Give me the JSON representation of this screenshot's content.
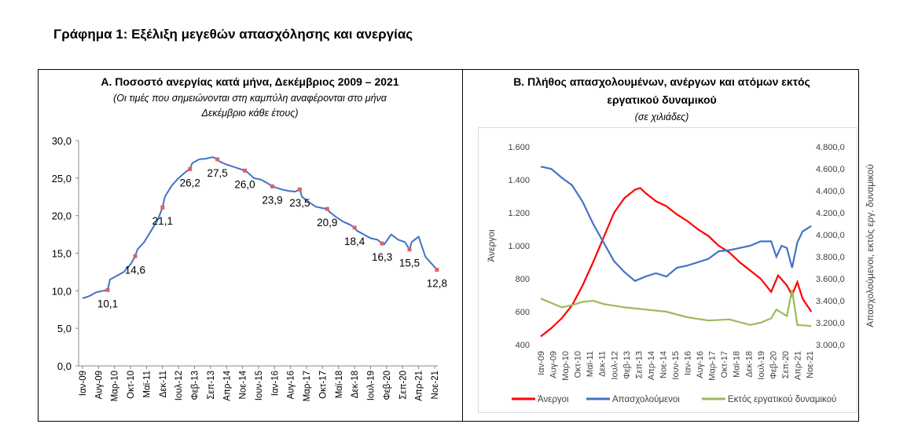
{
  "title": "Γράφημα 1: Εξέλιξη μεγεθών απασχόλησης και ανεργίας",
  "chart_data": [
    {
      "type": "line",
      "title": "Α. Ποσοστό ανεργίας κατά μήνα, Δεκέμβριος 2009 – 2021",
      "subtitle_lines": [
        "(Οι τιμές που σημειώνονται στη καμπύλη αναφέρονται στο μήνα",
        "Δεκέμβριο κάθε έτους)"
      ],
      "ylim": [
        0,
        30
      ],
      "yticks": [
        "0,0",
        "5,0",
        "10,0",
        "15,0",
        "20,0",
        "25,0",
        "30,0"
      ],
      "xticks": [
        "Ιαν-09",
        "Αυγ-09",
        "Μαρ-10",
        "Οκτ-10",
        "Μαϊ-11",
        "Δεκ-11",
        "Ιουλ-12",
        "Φεβ-13",
        "Σεπ-13",
        "Απρ-14",
        "Νοε-14",
        "Ιουν-15",
        "Ιαν-16",
        "Αυγ-16",
        "Μαρ-17",
        "Οκτ-17",
        "Μαϊ-18",
        "Δεκ-18",
        "Ιουλ-19",
        "Φεβ-20",
        "Σεπ-20",
        "Απρ-21",
        "Νοε-21"
      ],
      "series": [
        {
          "color": "#4472c4",
          "points": [
            [
              "2009-01",
              9.0
            ],
            [
              "2009-04",
              9.3
            ],
            [
              "2009-07",
              9.8
            ],
            [
              "2009-10",
              10.0
            ],
            [
              "2009-12",
              10.1
            ],
            [
              "2010-01",
              11.5
            ],
            [
              "2010-04",
              12.0
            ],
            [
              "2010-07",
              12.5
            ],
            [
              "2010-10",
              13.5
            ],
            [
              "2010-12",
              14.6
            ],
            [
              "2011-01",
              15.5
            ],
            [
              "2011-04",
              16.5
            ],
            [
              "2011-07",
              18.0
            ],
            [
              "2011-10",
              19.5
            ],
            [
              "2011-12",
              21.1
            ],
            [
              "2012-01",
              22.5
            ],
            [
              "2012-04",
              24.0
            ],
            [
              "2012-07",
              25.0
            ],
            [
              "2012-10",
              25.8
            ],
            [
              "2012-12",
              26.2
            ],
            [
              "2013-01",
              27.0
            ],
            [
              "2013-04",
              27.5
            ],
            [
              "2013-07",
              27.6
            ],
            [
              "2013-10",
              27.8
            ],
            [
              "2013-12",
              27.5
            ],
            [
              "2014-01",
              27.2
            ],
            [
              "2014-04",
              26.8
            ],
            [
              "2014-07",
              26.5
            ],
            [
              "2014-10",
              26.2
            ],
            [
              "2014-12",
              26.0
            ],
            [
              "2015-01",
              25.8
            ],
            [
              "2015-04",
              25.0
            ],
            [
              "2015-07",
              24.8
            ],
            [
              "2015-10",
              24.3
            ],
            [
              "2015-12",
              23.9
            ],
            [
              "2016-01",
              23.8
            ],
            [
              "2016-04",
              23.5
            ],
            [
              "2016-07",
              23.3
            ],
            [
              "2016-10",
              23.2
            ],
            [
              "2016-12",
              23.5
            ],
            [
              "2017-01",
              22.5
            ],
            [
              "2017-04",
              21.8
            ],
            [
              "2017-07",
              21.2
            ],
            [
              "2017-10",
              21.0
            ],
            [
              "2017-12",
              20.9
            ],
            [
              "2018-01",
              20.5
            ],
            [
              "2018-04",
              19.8
            ],
            [
              "2018-07",
              19.2
            ],
            [
              "2018-10",
              18.8
            ],
            [
              "2018-12",
              18.4
            ],
            [
              "2019-01",
              18.0
            ],
            [
              "2019-04",
              17.5
            ],
            [
              "2019-07",
              17.0
            ],
            [
              "2019-10",
              16.8
            ],
            [
              "2019-12",
              16.3
            ],
            [
              "2020-01",
              16.2
            ],
            [
              "2020-04",
              17.5
            ],
            [
              "2020-07",
              16.8
            ],
            [
              "2020-10",
              16.5
            ],
            [
              "2020-12",
              15.5
            ],
            [
              "2021-01",
              16.5
            ],
            [
              "2021-04",
              17.2
            ],
            [
              "2021-07",
              14.5
            ],
            [
              "2021-10",
              13.5
            ],
            [
              "2021-12",
              12.8
            ]
          ]
        }
      ],
      "labels": [
        [
          "2009-12",
          "10,1"
        ],
        [
          "2010-12",
          "14,6"
        ],
        [
          "2011-12",
          "21,1"
        ],
        [
          "2012-12",
          "26,2"
        ],
        [
          "2013-12",
          "27,5"
        ],
        [
          "2014-12",
          "26,0"
        ],
        [
          "2015-12",
          "23,9"
        ],
        [
          "2016-12",
          "23,5"
        ],
        [
          "2017-12",
          "20,9"
        ],
        [
          "2018-12",
          "18,4"
        ],
        [
          "2019-12",
          "16,3"
        ],
        [
          "2020-12",
          "15,5"
        ],
        [
          "2021-12",
          "12,8"
        ]
      ],
      "marker_color": "#e06060"
    },
    {
      "type": "line",
      "title_lines": [
        "Β. Πλήθος απασχολουμένων, ανέργων και ατόμων εκτός",
        "εργατικού δυναμικού"
      ],
      "subtitle": "(σε χιλιάδες)",
      "ylabel": "Άνεργοι",
      "y2label": "Απασχολούμενοι, εκτός εργ. δυναμικού",
      "ylim": [
        400,
        1600
      ],
      "y2lim": [
        3000,
        4800
      ],
      "yticks": [
        "400",
        "600",
        "800",
        "1.000",
        "1.200",
        "1.400",
        "1.600"
      ],
      "y2ticks": [
        "3.000,0",
        "3.200,0",
        "3.400,0",
        "3.600,0",
        "3.800,0",
        "4.000,0",
        "4.200,0",
        "4.400,0",
        "4.600,0",
        "4.800,0"
      ],
      "xticks": [
        "Ιαν-09",
        "Αυγ-09",
        "Μαρ-10",
        "Οκτ-10",
        "Μαϊ-11",
        "Δεκ-11",
        "Ιουλ-12",
        "Φεβ-13",
        "Σεπ-13",
        "Απρ-14",
        "Νοε-14",
        "Ιουν-15",
        "Ιαν-16",
        "Αυγ-16",
        "Μαρ-17",
        "Οκτ-17",
        "Μαϊ-18",
        "Δεκ-18",
        "Ιουλ-19",
        "Φεβ-20",
        "Σεπ-20",
        "Απρ-21",
        "Νοε-21"
      ],
      "legend_position": "bottom",
      "series": [
        {
          "name": "Άνεργοι",
          "color": "#ff0000",
          "axis": "left",
          "points": [
            [
              "2009-01",
              450
            ],
            [
              "2009-07",
              500
            ],
            [
              "2010-01",
              560
            ],
            [
              "2010-07",
              640
            ],
            [
              "2011-01",
              760
            ],
            [
              "2011-07",
              900
            ],
            [
              "2012-01",
              1050
            ],
            [
              "2012-07",
              1200
            ],
            [
              "2013-01",
              1290
            ],
            [
              "2013-07",
              1340
            ],
            [
              "2013-10",
              1350
            ],
            [
              "2014-01",
              1320
            ],
            [
              "2014-07",
              1270
            ],
            [
              "2015-01",
              1240
            ],
            [
              "2015-07",
              1190
            ],
            [
              "2016-01",
              1150
            ],
            [
              "2016-07",
              1100
            ],
            [
              "2017-01",
              1060
            ],
            [
              "2017-07",
              1000
            ],
            [
              "2018-01",
              960
            ],
            [
              "2018-07",
              900
            ],
            [
              "2019-01",
              850
            ],
            [
              "2019-07",
              800
            ],
            [
              "2020-01",
              720
            ],
            [
              "2020-05",
              820
            ],
            [
              "2020-10",
              760
            ],
            [
              "2021-01",
              700
            ],
            [
              "2021-04",
              780
            ],
            [
              "2021-07",
              680
            ],
            [
              "2021-12",
              600
            ]
          ]
        },
        {
          "name": "Απασχολούμενοι",
          "color": "#4472c4",
          "axis": "right",
          "points": [
            [
              "2009-01",
              4620
            ],
            [
              "2009-07",
              4600
            ],
            [
              "2010-01",
              4520
            ],
            [
              "2010-07",
              4450
            ],
            [
              "2011-01",
              4300
            ],
            [
              "2011-07",
              4100
            ],
            [
              "2012-01",
              3930
            ],
            [
              "2012-07",
              3760
            ],
            [
              "2013-01",
              3660
            ],
            [
              "2013-07",
              3580
            ],
            [
              "2014-01",
              3620
            ],
            [
              "2014-07",
              3650
            ],
            [
              "2015-01",
              3620
            ],
            [
              "2015-07",
              3700
            ],
            [
              "2016-01",
              3720
            ],
            [
              "2016-07",
              3750
            ],
            [
              "2017-01",
              3780
            ],
            [
              "2017-07",
              3850
            ],
            [
              "2018-01",
              3860
            ],
            [
              "2018-07",
              3880
            ],
            [
              "2019-01",
              3900
            ],
            [
              "2019-07",
              3940
            ],
            [
              "2020-01",
              3940
            ],
            [
              "2020-04",
              3800
            ],
            [
              "2020-07",
              3900
            ],
            [
              "2020-10",
              3880
            ],
            [
              "2021-01",
              3700
            ],
            [
              "2021-04",
              3930
            ],
            [
              "2021-07",
              4030
            ],
            [
              "2021-12",
              4080
            ]
          ]
        },
        {
          "name": "Εκτός εργατικού δυναμικού",
          "color": "#9bbb59",
          "axis": "right",
          "points": [
            [
              "2009-01",
              3420
            ],
            [
              "2010-01",
              3340
            ],
            [
              "2010-07",
              3360
            ],
            [
              "2011-01",
              3390
            ],
            [
              "2011-07",
              3400
            ],
            [
              "2012-01",
              3370
            ],
            [
              "2013-01",
              3340
            ],
            [
              "2014-01",
              3320
            ],
            [
              "2015-01",
              3300
            ],
            [
              "2016-01",
              3250
            ],
            [
              "2017-01",
              3220
            ],
            [
              "2018-01",
              3230
            ],
            [
              "2019-01",
              3180
            ],
            [
              "2019-07",
              3200
            ],
            [
              "2020-01",
              3240
            ],
            [
              "2020-04",
              3320
            ],
            [
              "2020-10",
              3260
            ],
            [
              "2021-01",
              3500
            ],
            [
              "2021-04",
              3180
            ],
            [
              "2021-12",
              3170
            ]
          ]
        }
      ]
    }
  ]
}
